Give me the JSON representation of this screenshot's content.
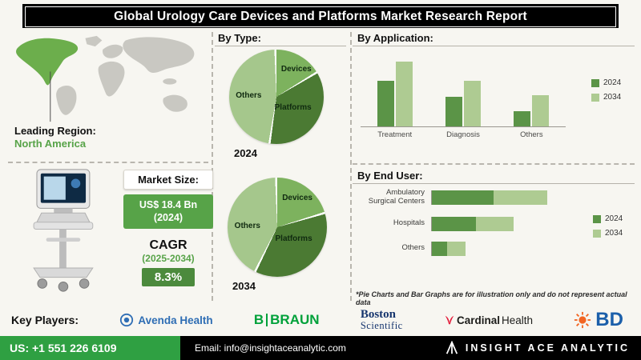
{
  "header": {
    "title": "Global Urology Care Devices and Platforms Market Research Report"
  },
  "leading_region": {
    "label": "Leading Region:",
    "value": "North America"
  },
  "market_size": {
    "label": "Market Size:",
    "value": "US$ 18.4 Bn",
    "year": "(2024)"
  },
  "cagr": {
    "label": "CAGR",
    "period": "(2025-2034)",
    "value": "8.3%"
  },
  "chart_data": [
    {
      "type": "pie",
      "title": "By Type:",
      "pies": [
        {
          "label": "2024",
          "segments": [
            "Devices",
            "Platforms",
            "Others"
          ],
          "values": [
            16,
            36,
            48
          ]
        },
        {
          "label": "2034",
          "segments": [
            "Devices",
            "Platforms",
            "Others"
          ],
          "values": [
            20,
            37,
            43
          ]
        }
      ],
      "note": "illustrative proportions"
    },
    {
      "type": "bar",
      "title": "By Application:",
      "categories": [
        "Treatment",
        "Diagnosis",
        "Others"
      ],
      "series": [
        {
          "name": "2024",
          "values": [
            62,
            40,
            21
          ]
        },
        {
          "name": "2034",
          "values": [
            88,
            62,
            42
          ]
        }
      ],
      "ylim": [
        0,
        100
      ],
      "legend_position": "right",
      "grid": false
    },
    {
      "type": "bar",
      "orientation": "horizontal",
      "stacked": true,
      "title": "By End User:",
      "categories": [
        "Ambulatory Surgical Centers",
        "Hospitals",
        "Others"
      ],
      "series": [
        {
          "name": "2024",
          "values": [
            44,
            31,
            11
          ]
        },
        {
          "name": "2034",
          "values": [
            38,
            27,
            13
          ]
        }
      ],
      "xlim": [
        0,
        100
      ],
      "legend_position": "right",
      "grid": false
    }
  ],
  "disclaimer": "*Pie Charts and Bar Graphs are for illustration only and do not represent actual data",
  "key_players": {
    "label": "Key Players:",
    "avenda": "Avenda Health",
    "braun_b": "B",
    "braun_name": "BRAUN",
    "boston_line1": "Boston",
    "boston_line2": "Scientific",
    "cardinal_part1": "Cardinal",
    "cardinal_part2": "Health",
    "bd": "BD"
  },
  "footer": {
    "phone": "US: +1 551 226 6109",
    "email": "Email: info@insightaceanalytic.com",
    "brand": "INSIGHT ACE ANALYTIC"
  },
  "colors": {
    "bar_2024": "#5b9447",
    "bar_2034": "#aecb92",
    "pie_devices": "#7db25e",
    "pie_platforms": "#4b7a33",
    "pie_others": "#a5c78c",
    "accent_green": "#57a348",
    "badge_green": "#57a348",
    "badge_dark_green": "#4c8a3d",
    "footer_green": "#2fa042",
    "brand_blue_avenda": "#2e6db4",
    "brand_green_braun": "#00a13a",
    "brand_navy_boston": "#16356e",
    "brand_red_cardinal": "#e31837",
    "brand_blue_bd": "#1b5faa",
    "brand_orange_bd": "#f26522"
  }
}
